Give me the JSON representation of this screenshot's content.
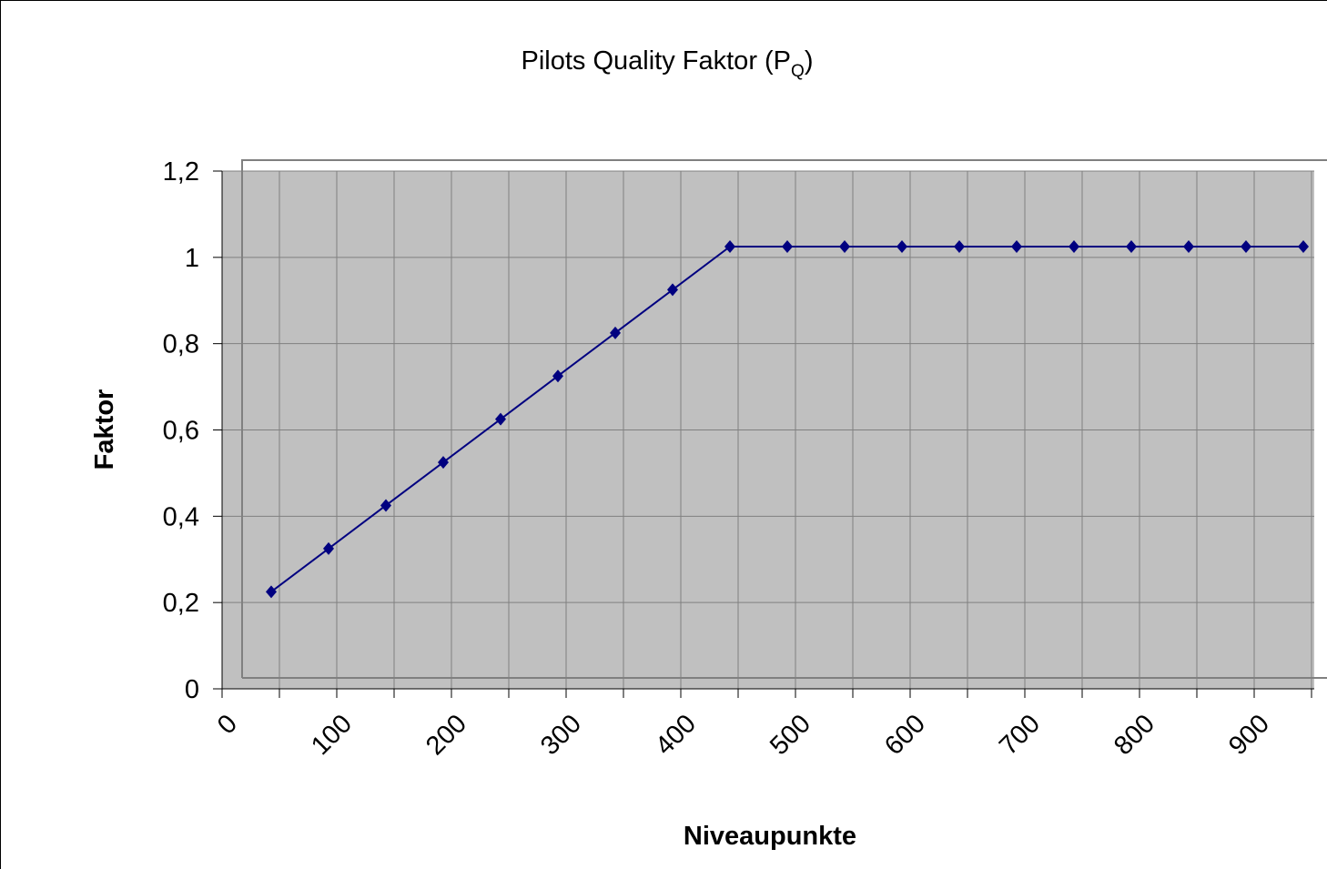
{
  "chart_data": {
    "type": "line",
    "title": [
      "Pilots Quality Faktor (P",
      "Q",
      ")"
    ],
    "x_label": "Niveaupunkte",
    "y_label": "Faktor",
    "categories": [
      "0",
      null,
      "100",
      null,
      "200",
      null,
      "300",
      null,
      "400",
      null,
      "500",
      null,
      "600",
      null,
      "700",
      null,
      "800",
      null,
      "900"
    ],
    "series": [
      {
        "name": "Faktor",
        "color": "#000080",
        "values": [
          0.225,
          0.325,
          0.425,
          0.525,
          0.625,
          0.725,
          0.825,
          0.925,
          1.025,
          1.025,
          1.025,
          1.025,
          1.025,
          1.025,
          1.025,
          1.025,
          1.025,
          1.025,
          1.025
        ]
      }
    ],
    "ylim": [
      0,
      1.2
    ],
    "yticks": [
      0,
      {
        "value": 0.2,
        "label": "0,2"
      },
      {
        "value": 0.4,
        "label": "0,4"
      },
      {
        "value": 0.6,
        "label": "0,6"
      },
      {
        "value": 0.8,
        "label": "0,8"
      },
      1,
      {
        "value": 1.2,
        "label": "1,2"
      }
    ],
    "grid": true,
    "plot_background": "#c0c0c0"
  }
}
